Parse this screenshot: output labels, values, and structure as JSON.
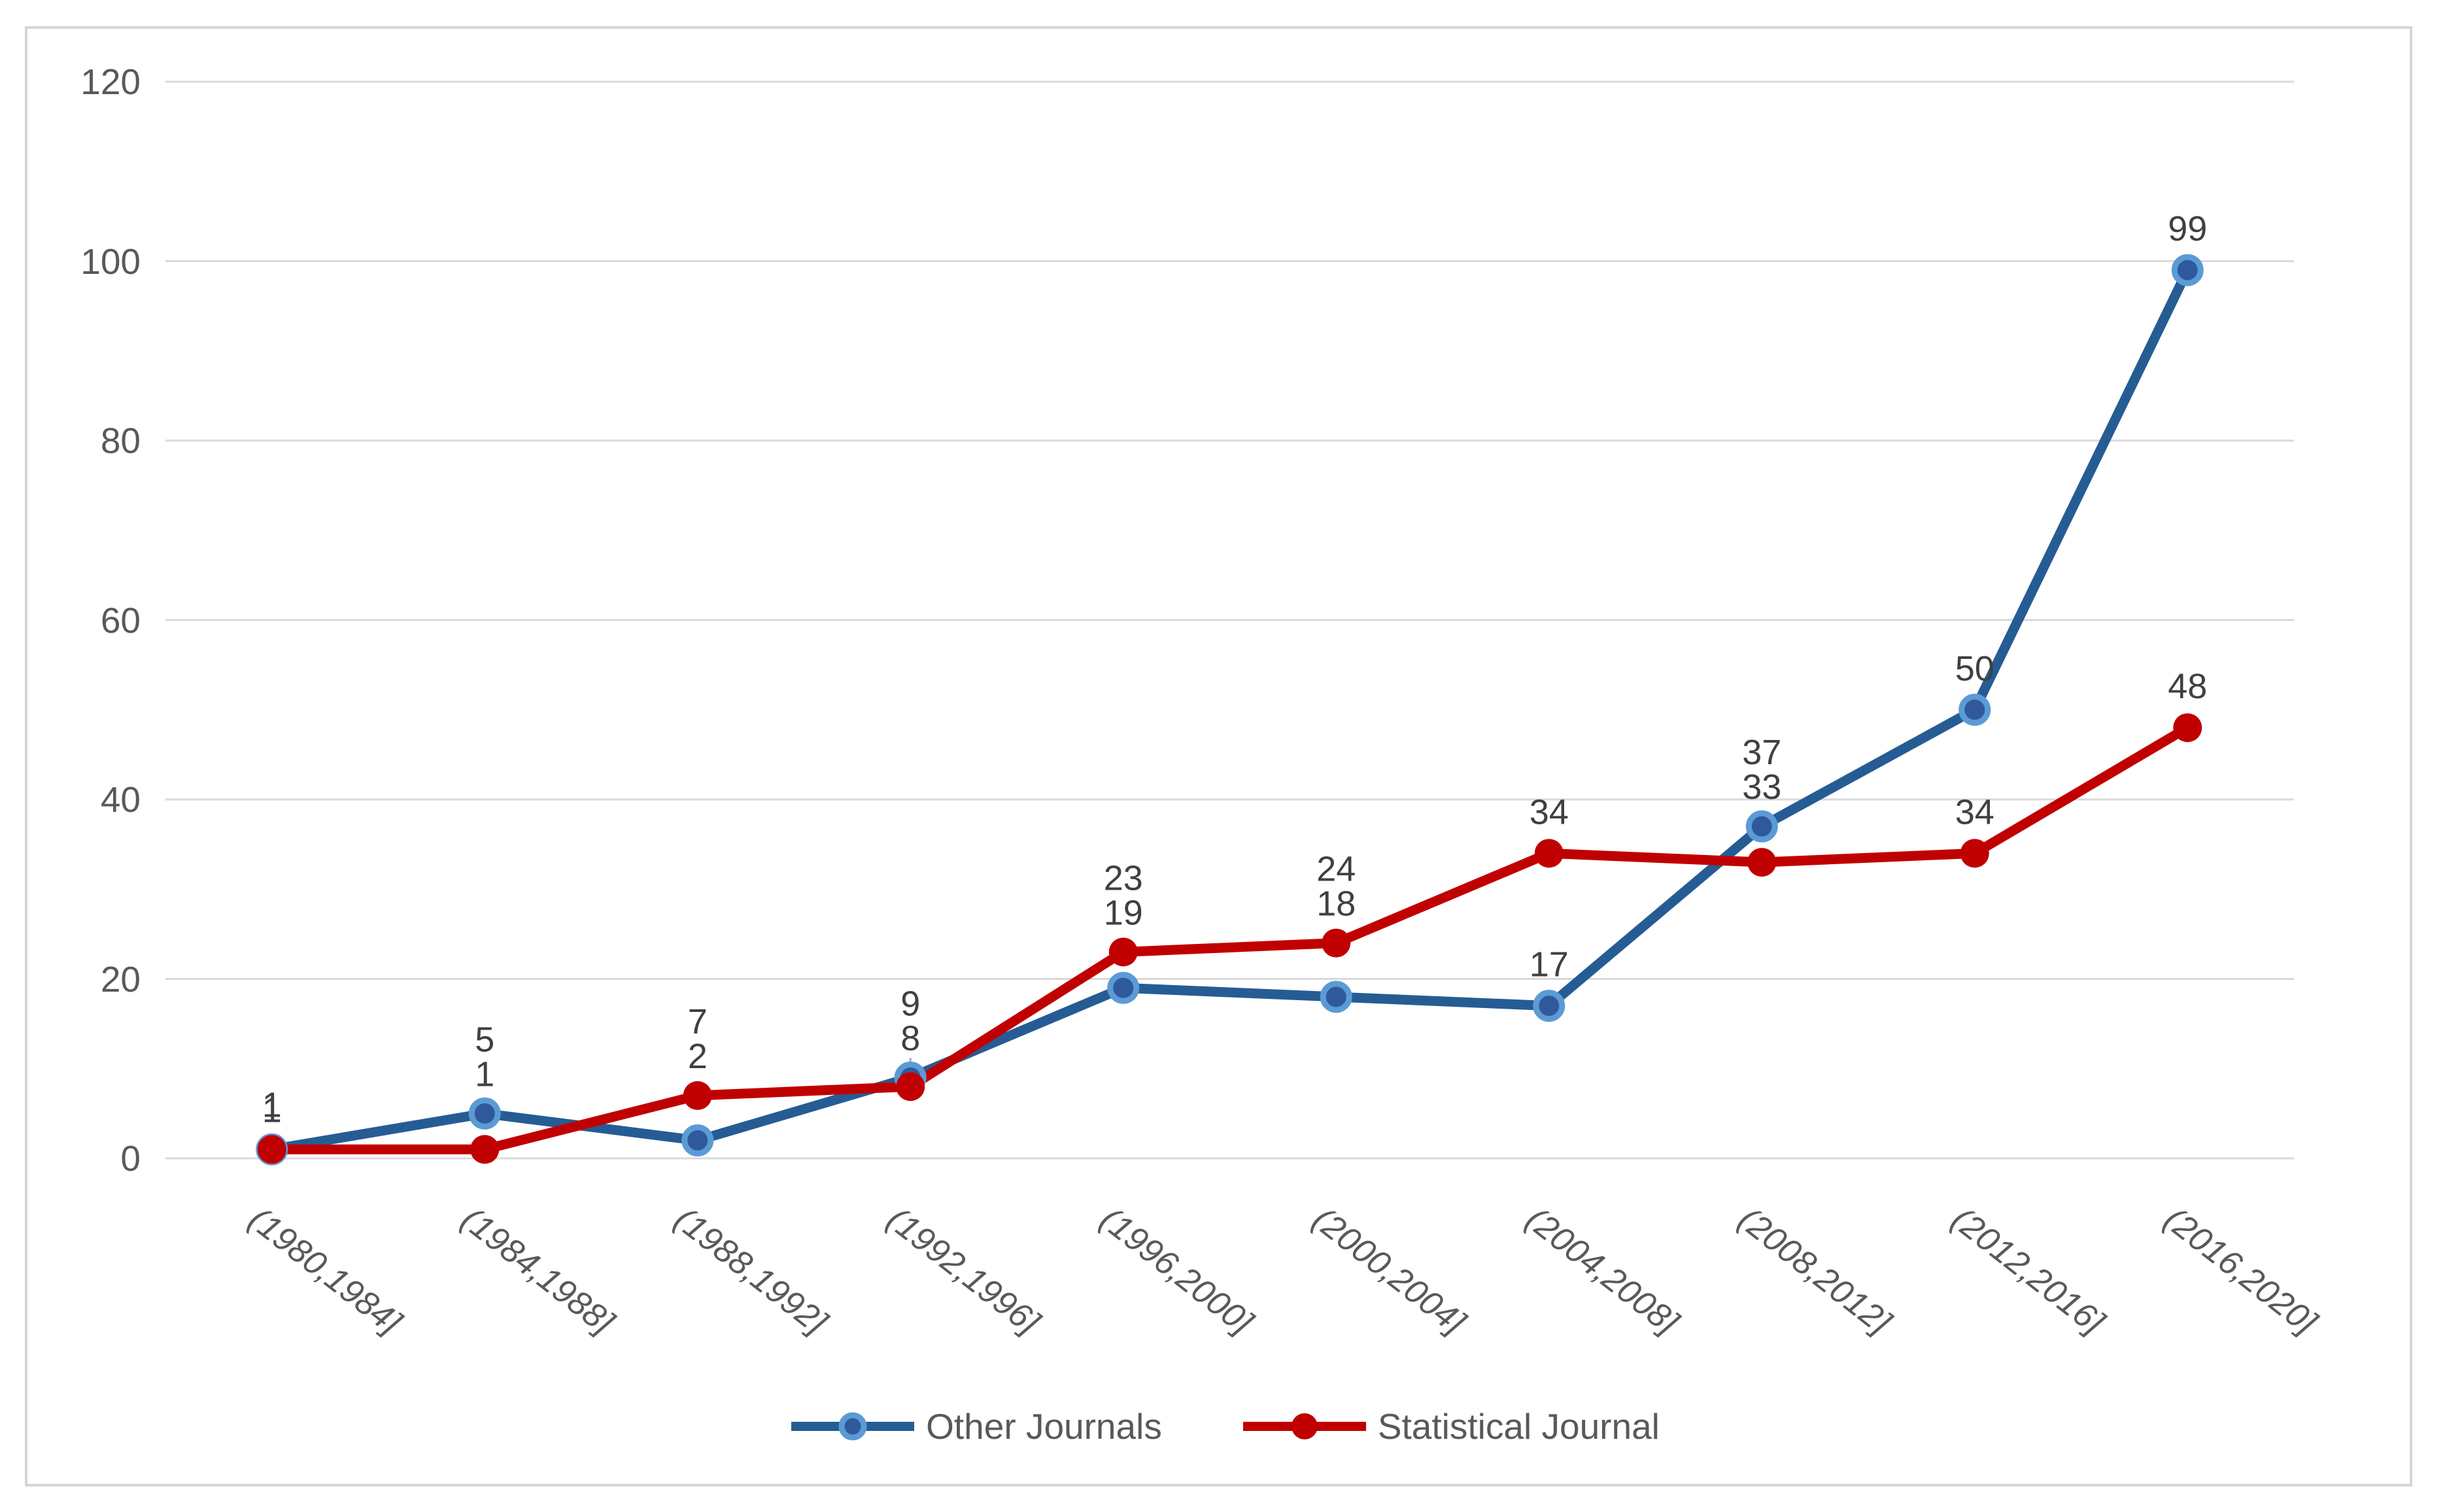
{
  "chart_data": {
    "type": "line",
    "title": "",
    "categories": [
      "(1980,1984]",
      "(1984,1988]",
      "(1988,1992]",
      "(1992,1996]",
      "(1996,2000]",
      "(2000,2004]",
      "(2004,2008]",
      "(2008,2012]",
      "(2012,2016]",
      "(2016,2020]"
    ],
    "series": [
      {
        "name": "Other Journals",
        "line_color": "#265c94",
        "marker_fill": "#30599b",
        "marker_ring": "#5b9bd5",
        "values": [
          1,
          5,
          2,
          9,
          19,
          18,
          17,
          37,
          50,
          99
        ]
      },
      {
        "name": "Statistical Journal",
        "line_color": "#c00000",
        "marker_fill": "#c00000",
        "marker_ring": "#c00000",
        "values": [
          1,
          1,
          7,
          8,
          23,
          24,
          34,
          33,
          34,
          48
        ]
      }
    ],
    "ylim": [
      0,
      120
    ],
    "yticks": [
      0,
      20,
      40,
      60,
      80,
      100,
      120
    ],
    "xlabel": "",
    "ylabel": "",
    "gridlines": true,
    "legend_position": "bottom",
    "data_labels": true,
    "leader_lines": [
      {
        "series": 1,
        "category_index": 3
      }
    ],
    "colors": {
      "gridline": "#d9d9d9",
      "frame_border": "#d6d6d6",
      "axis_label": "#595959",
      "data_label": "#404040",
      "leader_line": "#a6a6a6",
      "background": "#ffffff"
    }
  }
}
